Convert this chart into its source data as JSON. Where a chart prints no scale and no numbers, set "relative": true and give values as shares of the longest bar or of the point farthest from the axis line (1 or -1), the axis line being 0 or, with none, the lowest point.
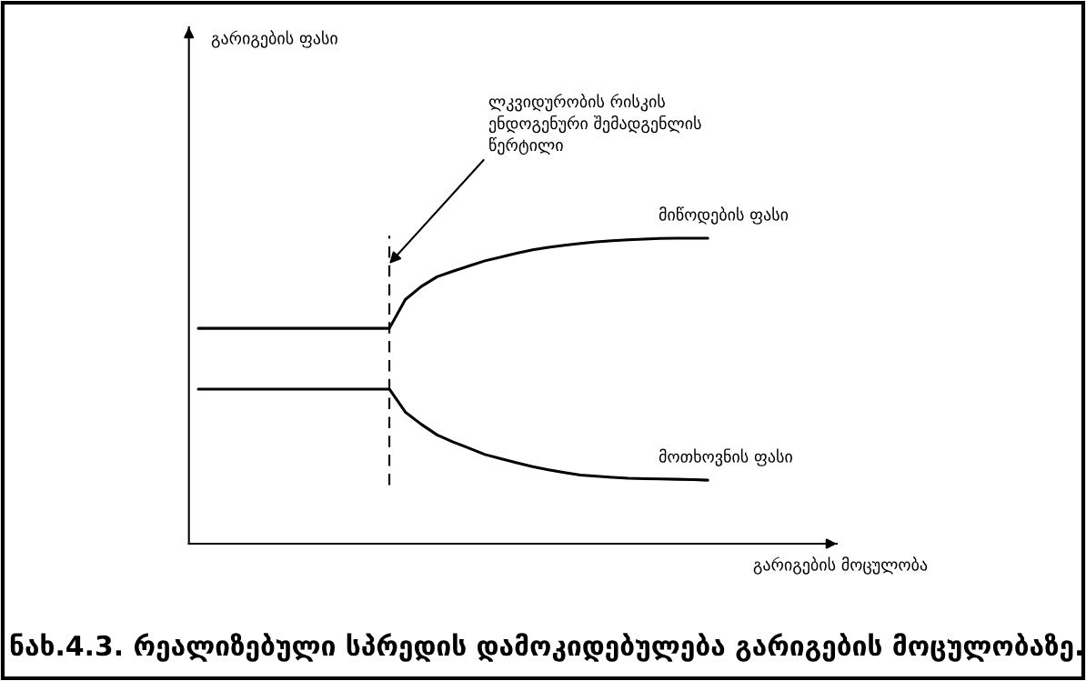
{
  "chart_data": {
    "type": "line",
    "title": "ნახ.4.3. რეალიზებული სპრედის დამოკიდებულება გარიგების მოცულობაზე.",
    "relative": true,
    "annotations": [
      "გარიგების ფასი",
      "გარიგების მოცულობა",
      "ლკვიდურობის რისკის\nენდოგენური შემადგენლის\nწერტილი"
    ],
    "categories": [
      null,
      null,
      null,
      null,
      null,
      null,
      null,
      null,
      null,
      null,
      null,
      null,
      null,
      null,
      null,
      null,
      null,
      null,
      null,
      null,
      null,
      null,
      null,
      null,
      null,
      null,
      null,
      null,
      null,
      null,
      null,
      null,
      null
    ],
    "series": [
      {
        "name": "მიწოდების ფასი",
        "color": "#000000",
        "values": [
          0.705,
          0.705,
          0.705,
          0.705,
          0.705,
          0.705,
          0.705,
          0.705,
          0.705,
          0.705,
          0.705,
          0.705,
          0.705,
          0.799,
          0.842,
          0.874,
          0.892,
          0.909,
          0.926,
          0.938,
          0.951,
          0.962,
          0.97,
          0.977,
          0.983,
          0.988,
          0.992,
          0.995,
          0.997,
          0.999,
          1.0,
          1.0,
          1.0
        ]
      },
      {
        "name": "მოთხოვნის ფასი",
        "color": "#000000",
        "values": [
          0.506,
          0.506,
          0.506,
          0.506,
          0.506,
          0.506,
          0.506,
          0.506,
          0.506,
          0.506,
          0.506,
          0.506,
          0.506,
          0.431,
          0.391,
          0.356,
          0.333,
          0.313,
          0.292,
          0.278,
          0.265,
          0.252,
          0.242,
          0.233,
          0.225,
          0.221,
          0.217,
          0.214,
          0.213,
          0.212,
          0.211,
          0.21,
          0.208
        ]
      }
    ]
  }
}
